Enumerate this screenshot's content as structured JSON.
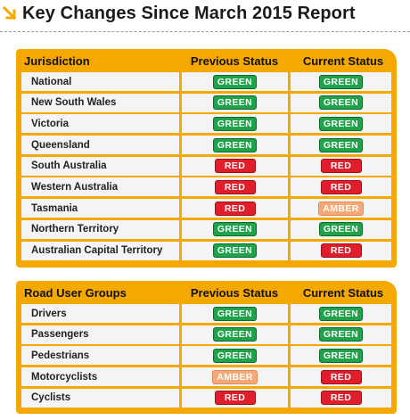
{
  "title": "Key Changes Since March 2015 Report",
  "colors": {
    "accent": "#f5a800",
    "green": "#1fa24a",
    "red": "#e01d2a",
    "amber": "#f6a977"
  },
  "jurisdictions": {
    "headers": [
      "Jurisdiction",
      "Previous Status",
      "Current Status"
    ],
    "rows": [
      {
        "name": "National",
        "prev": "GREEN",
        "cur": "GREEN"
      },
      {
        "name": "New South Wales",
        "prev": "GREEN",
        "cur": "GREEN"
      },
      {
        "name": "Victoria",
        "prev": "GREEN",
        "cur": "GREEN"
      },
      {
        "name": "Queensland",
        "prev": "GREEN",
        "cur": "GREEN"
      },
      {
        "name": "South Australia",
        "prev": "RED",
        "cur": "RED"
      },
      {
        "name": "Western Australia",
        "prev": "RED",
        "cur": "RED"
      },
      {
        "name": "Tasmania",
        "prev": "RED",
        "cur": "AMBER"
      },
      {
        "name": "Northern Territory",
        "prev": "GREEN",
        "cur": "GREEN"
      },
      {
        "name": "Australian Capital Territory",
        "prev": "GREEN",
        "cur": "RED"
      }
    ]
  },
  "road_users": {
    "headers": [
      "Road User Groups",
      "Previous Status",
      "Current Status"
    ],
    "rows": [
      {
        "name": "Drivers",
        "prev": "GREEN",
        "cur": "GREEN"
      },
      {
        "name": "Passengers",
        "prev": "GREEN",
        "cur": "GREEN"
      },
      {
        "name": "Pedestrians",
        "prev": "GREEN",
        "cur": "GREEN"
      },
      {
        "name": "Motorcyclists",
        "prev": "AMBER",
        "cur": "RED"
      },
      {
        "name": "Cyclists",
        "prev": "RED",
        "cur": "RED"
      }
    ]
  }
}
